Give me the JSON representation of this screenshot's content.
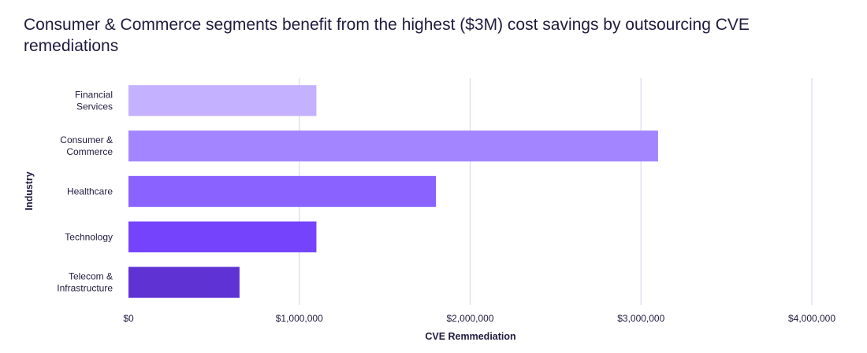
{
  "chart_data": {
    "type": "bar",
    "orientation": "horizontal",
    "title": "Consumer & Commerce segments benefit from the highest ($3M) cost savings by outsourcing CVE remediations",
    "xlabel": "CVE Remmediation",
    "ylabel": "Industry",
    "categories": [
      [
        "Financial",
        "Services"
      ],
      [
        "Consumer &",
        "Commerce"
      ],
      [
        "Healthcare"
      ],
      [
        "Technology"
      ],
      [
        "Telecom &",
        "Infrastructure"
      ]
    ],
    "values": [
      1100000,
      3100000,
      1800000,
      1100000,
      650000
    ],
    "colors": [
      "#c4b1ff",
      "#a386ff",
      "#8a62ff",
      "#7443fb",
      "#5f33d3"
    ],
    "xlim": [
      0,
      4000000
    ],
    "xticks": [
      0,
      1000000,
      2000000,
      3000000,
      4000000
    ],
    "xtick_labels": [
      "$0",
      "$1,000,000",
      "$2,000,000",
      "$3,000,000",
      "$4,000,000"
    ],
    "grid": true
  }
}
